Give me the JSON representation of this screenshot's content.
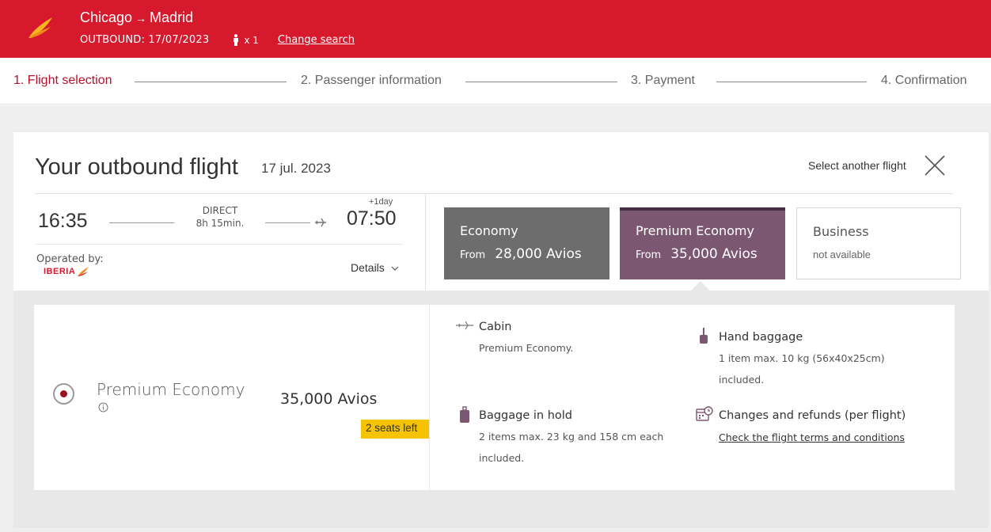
{
  "header": {
    "origin": "Chicago",
    "arrow": "→",
    "destination": "Madrid",
    "outbound_label": "OUTBOUND: 17/07/2023",
    "passengers": "x 1",
    "change_search": "Change search",
    "brand_color": "#d7192d"
  },
  "steps": [
    {
      "label": "1. Flight selection"
    },
    {
      "label": "2. Passenger information"
    },
    {
      "label": "3. Payment"
    },
    {
      "label": "4. Confirmation"
    }
  ],
  "flight": {
    "title": "Your outbound flight",
    "date": "17 jul. 2023",
    "select_another": "Select another flight",
    "departure_time": "16:35",
    "arrival_time": "07:50",
    "plus_day": "+1day",
    "stops": "DIRECT",
    "duration": "8h 15min.",
    "operated_by": "Operated by:",
    "airline_logo_text": "IBERIA",
    "details": "Details"
  },
  "fares": {
    "economy": {
      "name": "Economy",
      "from": "From",
      "price": "28,000 Avios"
    },
    "premium": {
      "name": "Premium Economy",
      "from": "From",
      "price": "35,000 Avios"
    },
    "business": {
      "name": "Business",
      "status": "not available"
    }
  },
  "selected_fare": {
    "name": "Premium Economy",
    "price": "35,000 Avios",
    "seats_left": "2 seats left"
  },
  "features": {
    "cabin": {
      "title": "Cabin",
      "text": "Premium Economy."
    },
    "hand_baggage": {
      "title": "Hand baggage",
      "line1": "1 item max. 10 kg (56x40x25cm)",
      "line2": "included."
    },
    "hold_baggage": {
      "title": "Baggage in hold",
      "line1": "2 items max. 23 kg and 158 cm each",
      "line2": "included."
    },
    "changes": {
      "title": "Changes and refunds (per flight)",
      "link": "Check the flight terms and conditions"
    }
  }
}
